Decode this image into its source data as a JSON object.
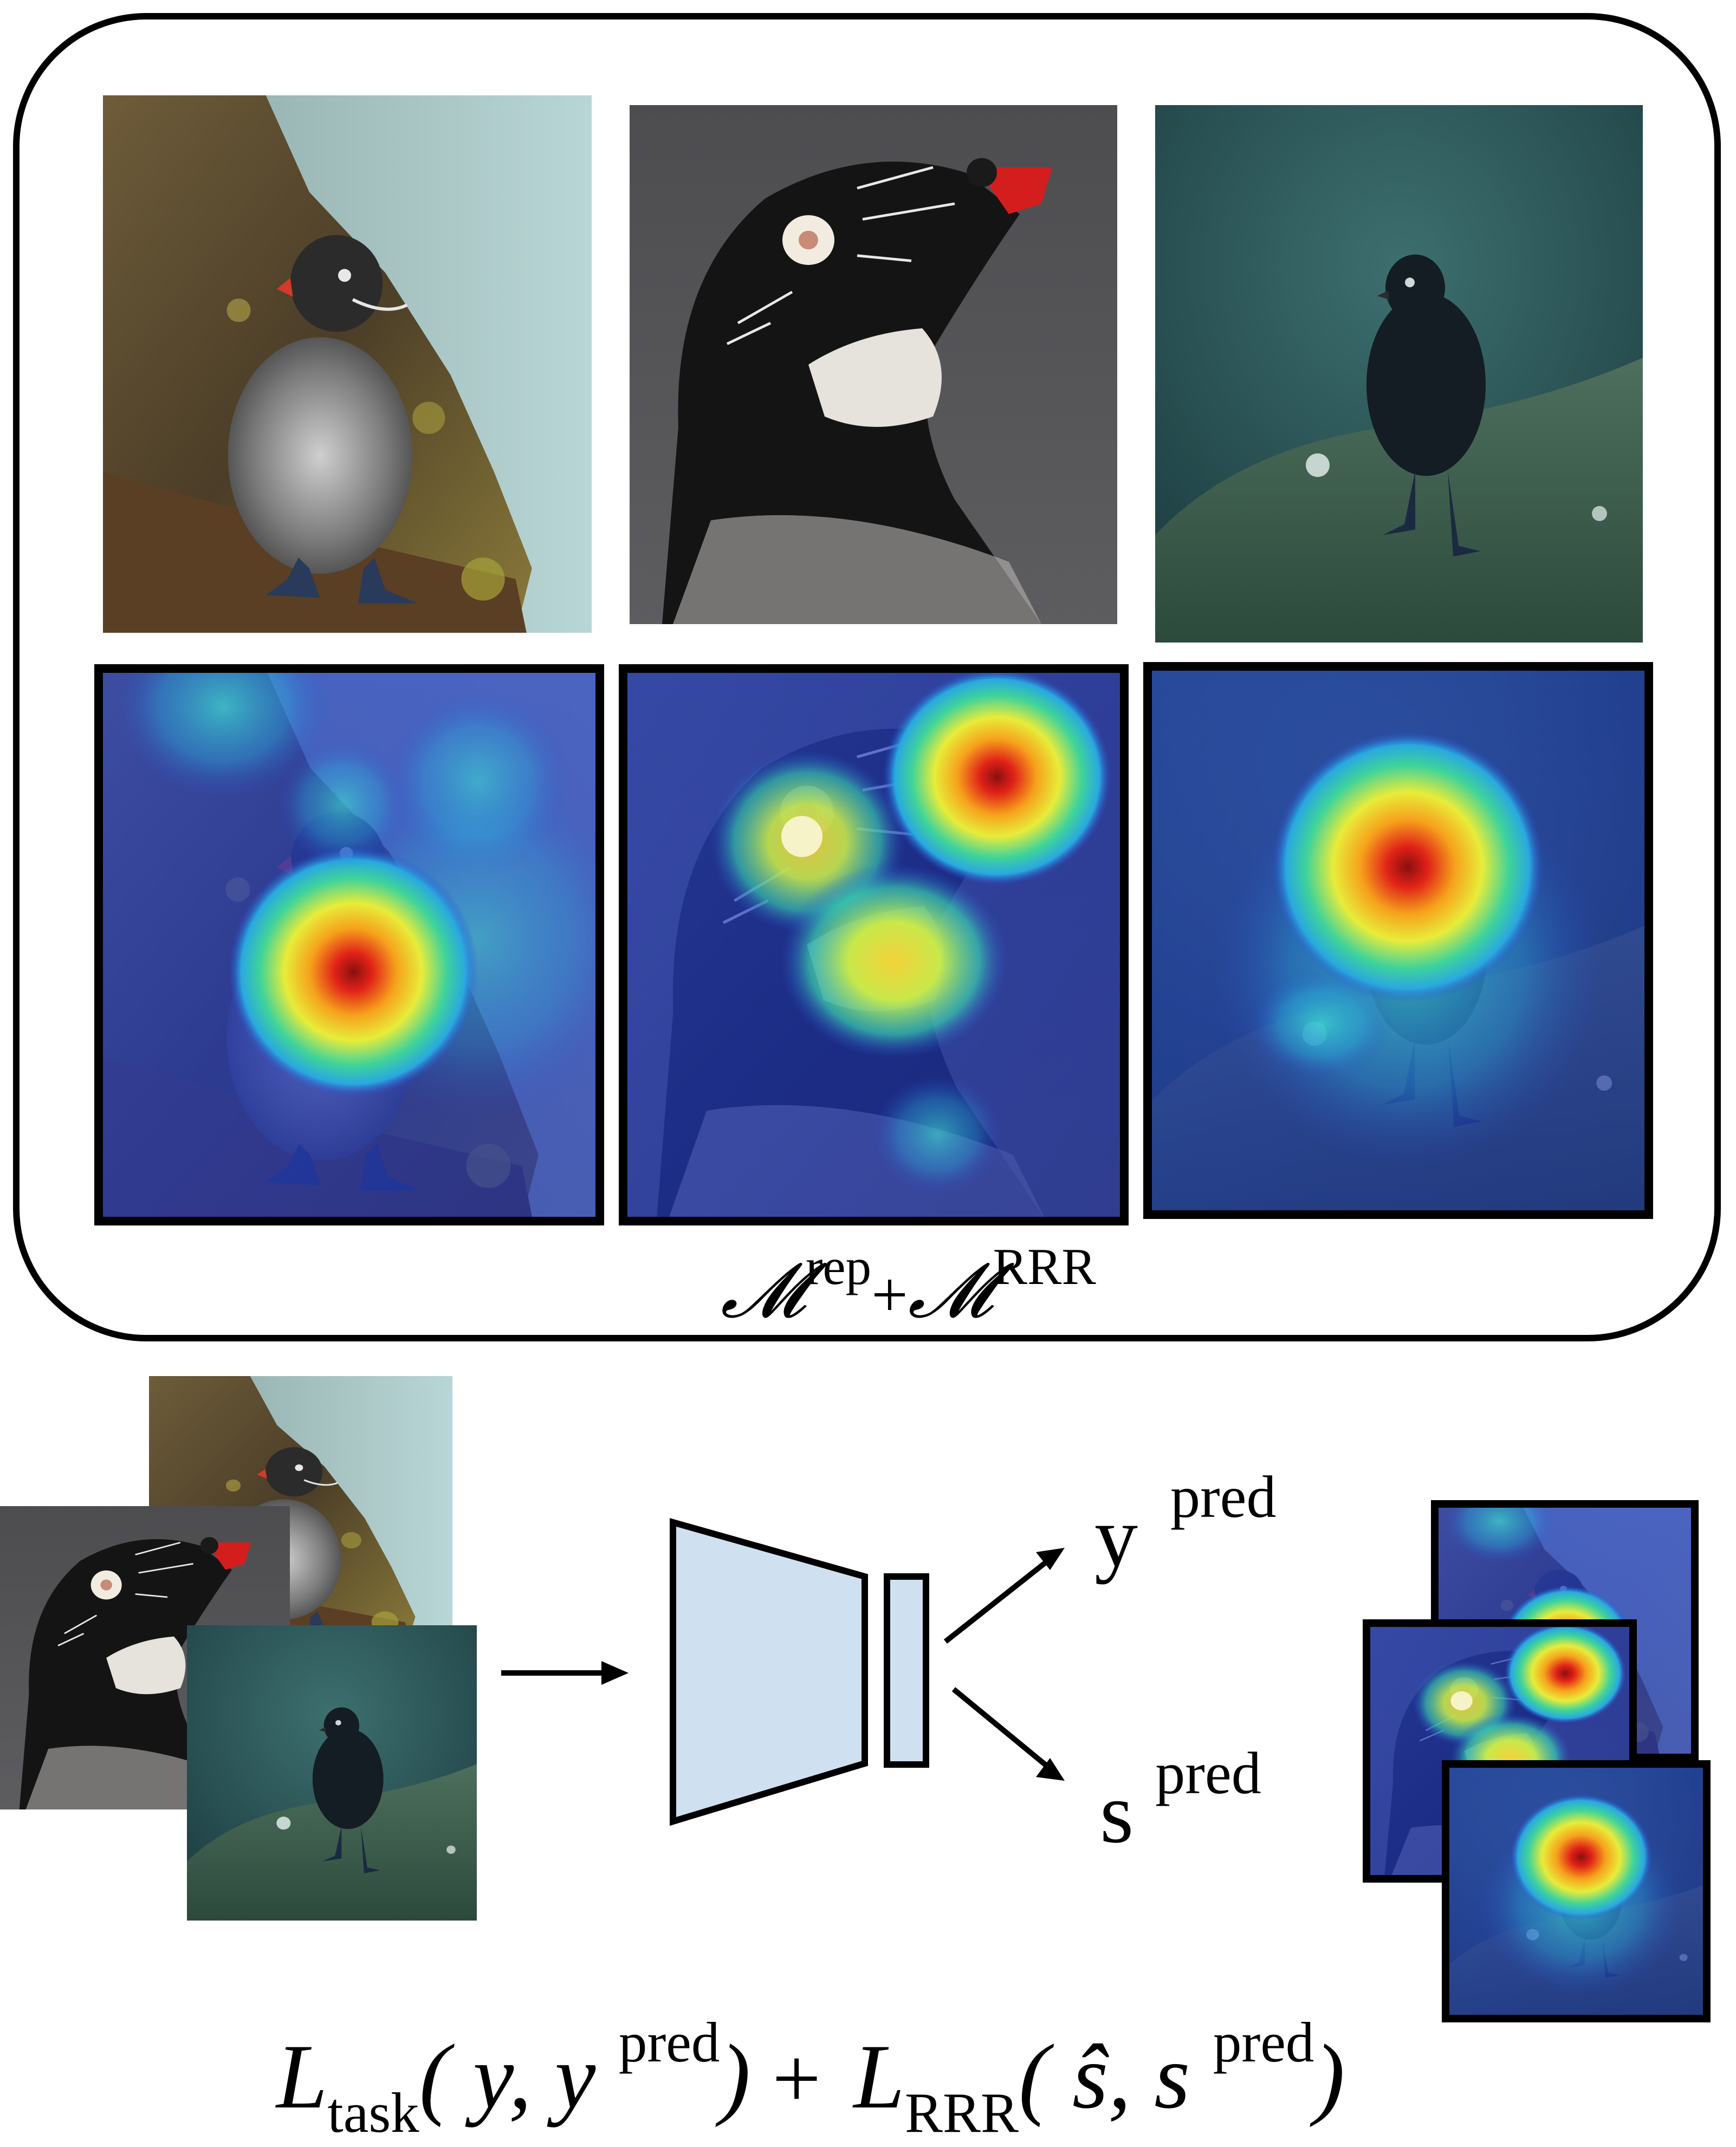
{
  "top_panel": {
    "photos": [
      {
        "name": "photo-auklet-on-rock",
        "subject": "auklet perched on a lichen-covered rock"
      },
      {
        "name": "photo-auklet-head-closeup",
        "subject": "close-up of auklet head with red bill"
      },
      {
        "name": "photo-auklet-green-tint",
        "subject": "dark auklet on a green mossy rock"
      }
    ],
    "heatmaps": [
      {
        "name": "heatmap-body-focus",
        "focus": "body"
      },
      {
        "name": "heatmap-bill-eye-focus",
        "focus": "bill and eye"
      },
      {
        "name": "heatmap-head-focus",
        "focus": "head"
      }
    ],
    "caption": {
      "m1": "𝓜",
      "sup1": "rep",
      "plus": "+",
      "m2": "𝓜",
      "sup2": "RRR"
    }
  },
  "pipeline": {
    "outputs": {
      "y": "y",
      "y_sup": "pred",
      "s": "s",
      "s_sup": "pred"
    }
  },
  "loss": {
    "l1": "L",
    "l1_sub": "task",
    "l1_args_open": "( y, y ",
    "l1_args_sup": "pred",
    "l1_args_close": ")",
    "plus": "+",
    "l2": "L",
    "l2_sub": "RRR",
    "l2_args_open": "( ŝ, s ",
    "l2_args_sup": "pred",
    "l2_args_close": ")"
  },
  "colors": {
    "frame": "#000000",
    "network": "#cfe0f0",
    "heat_hot": "#d62015",
    "heat_cold": "#2a3cc8"
  }
}
